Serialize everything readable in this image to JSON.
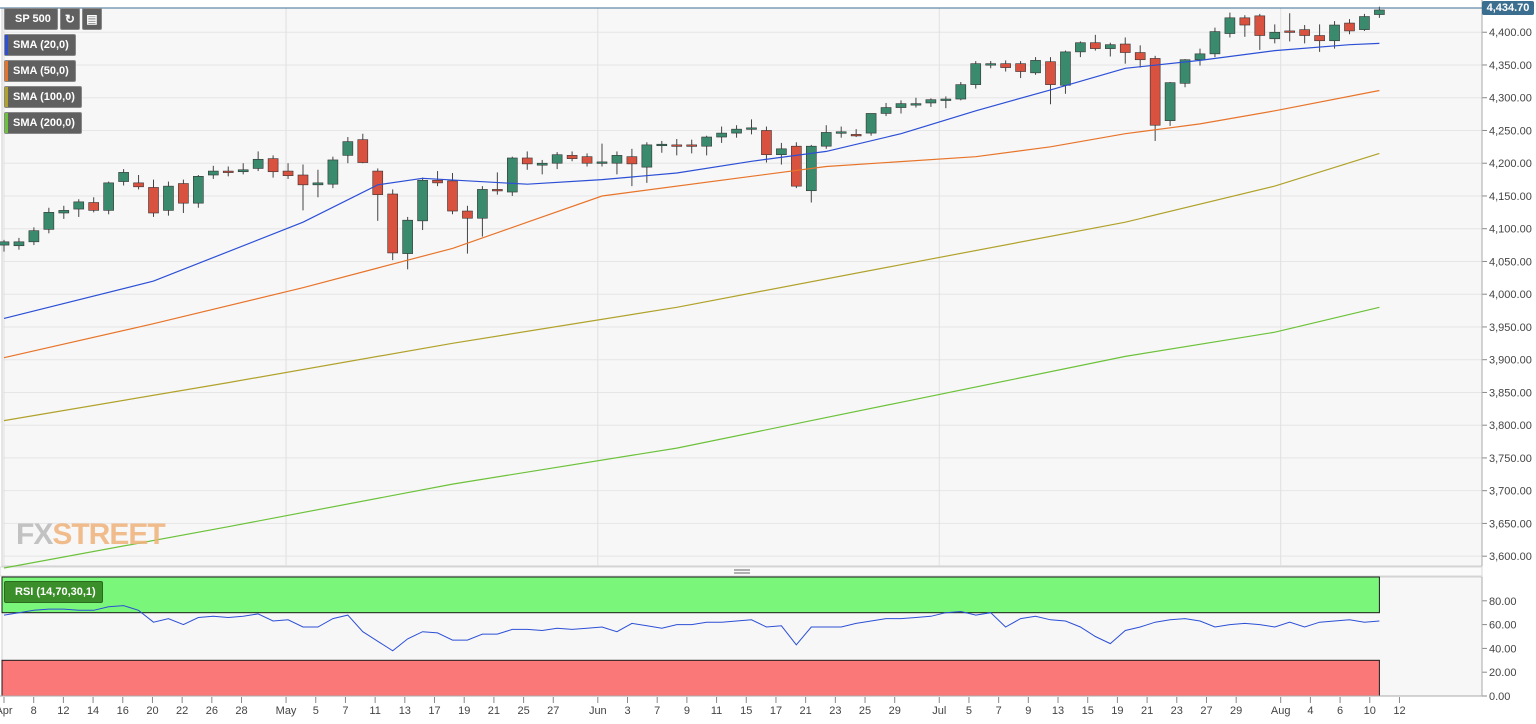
{
  "symbol": "SP 500",
  "price_label": "4,434.70",
  "logo": {
    "part1": "FX",
    "part2": "STREET"
  },
  "indicators": [
    {
      "label": "SMA (20,0)",
      "color": "#2c4fd6"
    },
    {
      "label": "SMA (50,0)",
      "color": "#e8742a"
    },
    {
      "label": "SMA (100,0)",
      "color": "#b0a22a"
    },
    {
      "label": "SMA (200,0)",
      "color": "#6cc23a"
    }
  ],
  "rsi_label": "RSI (14,70,30,1)",
  "icons": [
    "refresh-icon",
    "bar-chart-icon"
  ],
  "chart_data": {
    "type": "candlestick",
    "y_ticks": [
      "3,600.00",
      "3,650.00",
      "3,700.00",
      "3,750.00",
      "3,800.00",
      "3,850.00",
      "3,900.00",
      "3,950.00",
      "4,000.00",
      "4,050.00",
      "4,100.00",
      "4,150.00",
      "4,200.00",
      "4,250.00",
      "4,300.00",
      "4,350.00",
      "4,400.00"
    ],
    "ylim": [
      3585,
      4437
    ],
    "x_ticks": [
      "Apr",
      "8",
      "12",
      "14",
      "16",
      "20",
      "22",
      "26",
      "28",
      "May",
      "5",
      "7",
      "11",
      "13",
      "17",
      "19",
      "21",
      "25",
      "27",
      "Jun",
      "3",
      "7",
      "9",
      "11",
      "15",
      "17",
      "21",
      "23",
      "25",
      "29",
      "Jul",
      "5",
      "7",
      "9",
      "13",
      "15",
      "19",
      "21",
      "23",
      "27",
      "29",
      "Aug",
      "4",
      "6",
      "10",
      "12"
    ],
    "candles": [
      {
        "o": 4075,
        "h": 4083,
        "l": 4065,
        "c": 4080
      },
      {
        "o": 4074,
        "h": 4086,
        "l": 4068,
        "c": 4080
      },
      {
        "o": 4080,
        "h": 4102,
        "l": 4075,
        "c": 4097
      },
      {
        "o": 4099,
        "h": 4132,
        "l": 4093,
        "c": 4125
      },
      {
        "o": 4124,
        "h": 4135,
        "l": 4115,
        "c": 4128
      },
      {
        "o": 4130,
        "h": 4145,
        "l": 4118,
        "c": 4141
      },
      {
        "o": 4140,
        "h": 4148,
        "l": 4125,
        "c": 4128
      },
      {
        "o": 4128,
        "h": 4172,
        "l": 4122,
        "c": 4170
      },
      {
        "o": 4172,
        "h": 4191,
        "l": 4166,
        "c": 4186
      },
      {
        "o": 4170,
        "h": 4182,
        "l": 4160,
        "c": 4164
      },
      {
        "o": 4163,
        "h": 4175,
        "l": 4118,
        "c": 4124
      },
      {
        "o": 4128,
        "h": 4172,
        "l": 4120,
        "c": 4165
      },
      {
        "o": 4169,
        "h": 4175,
        "l": 4124,
        "c": 4139
      },
      {
        "o": 4139,
        "h": 4182,
        "l": 4132,
        "c": 4180
      },
      {
        "o": 4182,
        "h": 4196,
        "l": 4176,
        "c": 4188
      },
      {
        "o": 4188,
        "h": 4195,
        "l": 4180,
        "c": 4187
      },
      {
        "o": 4187,
        "h": 4200,
        "l": 4183,
        "c": 4190
      },
      {
        "o": 4192,
        "h": 4218,
        "l": 4188,
        "c": 4206
      },
      {
        "o": 4207,
        "h": 4212,
        "l": 4178,
        "c": 4187
      },
      {
        "o": 4188,
        "h": 4200,
        "l": 4176,
        "c": 4181
      },
      {
        "o": 4182,
        "h": 4198,
        "l": 4128,
        "c": 4167
      },
      {
        "o": 4167,
        "h": 4190,
        "l": 4148,
        "c": 4170
      },
      {
        "o": 4168,
        "h": 4210,
        "l": 4162,
        "c": 4205
      },
      {
        "o": 4212,
        "h": 4240,
        "l": 4200,
        "c": 4233
      },
      {
        "o": 4236,
        "h": 4245,
        "l": 4200,
        "c": 4201
      },
      {
        "o": 4188,
        "h": 4192,
        "l": 4112,
        "c": 4152
      },
      {
        "o": 4153,
        "h": 4160,
        "l": 4052,
        "c": 4063
      },
      {
        "o": 4062,
        "h": 4118,
        "l": 4038,
        "c": 4113
      },
      {
        "o": 4112,
        "h": 4178,
        "l": 4098,
        "c": 4174
      },
      {
        "o": 4174,
        "h": 4188,
        "l": 4165,
        "c": 4170
      },
      {
        "o": 4173,
        "h": 4185,
        "l": 4122,
        "c": 4127
      },
      {
        "o": 4127,
        "h": 4135,
        "l": 4062,
        "c": 4116
      },
      {
        "o": 4116,
        "h": 4165,
        "l": 4088,
        "c": 4160
      },
      {
        "o": 4160,
        "h": 4186,
        "l": 4152,
        "c": 4159
      },
      {
        "o": 4156,
        "h": 4210,
        "l": 4150,
        "c": 4208
      },
      {
        "o": 4208,
        "h": 4218,
        "l": 4190,
        "c": 4199
      },
      {
        "o": 4197,
        "h": 4205,
        "l": 4183,
        "c": 4200
      },
      {
        "o": 4200,
        "h": 4217,
        "l": 4191,
        "c": 4213
      },
      {
        "o": 4212,
        "h": 4218,
        "l": 4203,
        "c": 4207
      },
      {
        "o": 4210,
        "h": 4215,
        "l": 4195,
        "c": 4200
      },
      {
        "o": 4200,
        "h": 4230,
        "l": 4195,
        "c": 4202
      },
      {
        "o": 4200,
        "h": 4218,
        "l": 4183,
        "c": 4212
      },
      {
        "o": 4210,
        "h": 4222,
        "l": 4165,
        "c": 4199
      },
      {
        "o": 4194,
        "h": 4232,
        "l": 4170,
        "c": 4228
      },
      {
        "o": 4228,
        "h": 4234,
        "l": 4216,
        "c": 4229
      },
      {
        "o": 4228,
        "h": 4237,
        "l": 4212,
        "c": 4226
      },
      {
        "o": 4228,
        "h": 4236,
        "l": 4215,
        "c": 4226
      },
      {
        "o": 4226,
        "h": 4242,
        "l": 4212,
        "c": 4240
      },
      {
        "o": 4240,
        "h": 4256,
        "l": 4231,
        "c": 4246
      },
      {
        "o": 4246,
        "h": 4258,
        "l": 4239,
        "c": 4252
      },
      {
        "o": 4252,
        "h": 4267,
        "l": 4244,
        "c": 4254
      },
      {
        "o": 4250,
        "h": 4256,
        "l": 4201,
        "c": 4213
      },
      {
        "o": 4213,
        "h": 4231,
        "l": 4198,
        "c": 4222
      },
      {
        "o": 4226,
        "h": 4232,
        "l": 4162,
        "c": 4165
      },
      {
        "o": 4158,
        "h": 4228,
        "l": 4140,
        "c": 4226
      },
      {
        "o": 4226,
        "h": 4258,
        "l": 4222,
        "c": 4247
      },
      {
        "o": 4246,
        "h": 4256,
        "l": 4239,
        "c": 4248
      },
      {
        "o": 4244,
        "h": 4252,
        "l": 4240,
        "c": 4243
      },
      {
        "o": 4246,
        "h": 4276,
        "l": 4242,
        "c": 4276
      },
      {
        "o": 4276,
        "h": 4292,
        "l": 4272,
        "c": 4285
      },
      {
        "o": 4285,
        "h": 4296,
        "l": 4276,
        "c": 4291
      },
      {
        "o": 4289,
        "h": 4300,
        "l": 4285,
        "c": 4291
      },
      {
        "o": 4292,
        "h": 4299,
        "l": 4286,
        "c": 4297
      },
      {
        "o": 4298,
        "h": 4302,
        "l": 4284,
        "c": 4298
      },
      {
        "o": 4298,
        "h": 4324,
        "l": 4296,
        "c": 4320
      },
      {
        "o": 4320,
        "h": 4356,
        "l": 4314,
        "c": 4352
      },
      {
        "o": 4352,
        "h": 4356,
        "l": 4345,
        "c": 4352
      },
      {
        "o": 4352,
        "h": 4357,
        "l": 4340,
        "c": 4346
      },
      {
        "o": 4352,
        "h": 4356,
        "l": 4330,
        "c": 4340
      },
      {
        "o": 4338,
        "h": 4362,
        "l": 4335,
        "c": 4357
      },
      {
        "o": 4355,
        "h": 4362,
        "l": 4290,
        "c": 4320
      },
      {
        "o": 4319,
        "h": 4372,
        "l": 4306,
        "c": 4370
      },
      {
        "o": 4370,
        "h": 4386,
        "l": 4362,
        "c": 4384
      },
      {
        "o": 4384,
        "h": 4396,
        "l": 4372,
        "c": 4375
      },
      {
        "o": 4375,
        "h": 4384,
        "l": 4363,
        "c": 4381
      },
      {
        "o": 4382,
        "h": 4392,
        "l": 4352,
        "c": 4369
      },
      {
        "o": 4369,
        "h": 4380,
        "l": 4346,
        "c": 4358
      },
      {
        "o": 4360,
        "h": 4364,
        "l": 4234,
        "c": 4258
      },
      {
        "o": 4265,
        "h": 4324,
        "l": 4257,
        "c": 4323
      },
      {
        "o": 4322,
        "h": 4359,
        "l": 4316,
        "c": 4358
      },
      {
        "o": 4358,
        "h": 4375,
        "l": 4349,
        "c": 4367
      },
      {
        "o": 4367,
        "h": 4407,
        "l": 4362,
        "c": 4401
      },
      {
        "o": 4398,
        "h": 4430,
        "l": 4392,
        "c": 4422
      },
      {
        "o": 4422,
        "h": 4426,
        "l": 4393,
        "c": 4411
      },
      {
        "o": 4425,
        "h": 4428,
        "l": 4373,
        "c": 4395
      },
      {
        "o": 4390,
        "h": 4412,
        "l": 4383,
        "c": 4400
      },
      {
        "o": 4402,
        "h": 4429,
        "l": 4386,
        "c": 4401
      },
      {
        "o": 4404,
        "h": 4411,
        "l": 4383,
        "c": 4395
      },
      {
        "o": 4395,
        "h": 4412,
        "l": 4370,
        "c": 4387
      },
      {
        "o": 4387,
        "h": 4417,
        "l": 4375,
        "c": 4411
      },
      {
        "o": 4414,
        "h": 4420,
        "l": 4397,
        "c": 4402
      },
      {
        "o": 4404,
        "h": 4428,
        "l": 4402,
        "c": 4424
      },
      {
        "o": 4427,
        "h": 4439,
        "l": 4422,
        "c": 4434
      }
    ],
    "sma20": [
      [
        0,
        3963
      ],
      [
        10,
        4020
      ],
      [
        20,
        4110
      ],
      [
        25,
        4167
      ],
      [
        28,
        4177
      ],
      [
        35,
        4168
      ],
      [
        40,
        4175
      ],
      [
        45,
        4185
      ],
      [
        50,
        4203
      ],
      [
        55,
        4218
      ],
      [
        60,
        4245
      ],
      [
        65,
        4280
      ],
      [
        70,
        4312
      ],
      [
        75,
        4345
      ],
      [
        80,
        4357
      ],
      [
        85,
        4372
      ],
      [
        90,
        4381
      ],
      [
        92,
        4383
      ]
    ],
    "sma50": [
      [
        0,
        3903
      ],
      [
        10,
        3955
      ],
      [
        20,
        4010
      ],
      [
        25,
        4040
      ],
      [
        30,
        4070
      ],
      [
        35,
        4110
      ],
      [
        40,
        4150
      ],
      [
        50,
        4180
      ],
      [
        55,
        4195
      ],
      [
        65,
        4210
      ],
      [
        70,
        4225
      ],
      [
        75,
        4245
      ],
      [
        80,
        4260
      ],
      [
        85,
        4280
      ],
      [
        92,
        4311
      ]
    ],
    "sma100": [
      [
        0,
        3807
      ],
      [
        15,
        3865
      ],
      [
        30,
        3925
      ],
      [
        45,
        3980
      ],
      [
        60,
        4045
      ],
      [
        75,
        4110
      ],
      [
        85,
        4165
      ],
      [
        92,
        4215
      ]
    ],
    "sma200": [
      [
        0,
        3582
      ],
      [
        15,
        3645
      ],
      [
        30,
        3710
      ],
      [
        45,
        3765
      ],
      [
        60,
        3835
      ],
      [
        75,
        3905
      ],
      [
        85,
        3942
      ],
      [
        92,
        3980
      ]
    ],
    "rsi": {
      "ylim": [
        0,
        100
      ],
      "y_ticks": [
        "0.00",
        "20.00",
        "40.00",
        "60.00",
        "80.00"
      ],
      "overbought": 70,
      "oversold": 30,
      "values": [
        68,
        70,
        72,
        73,
        73,
        72,
        72,
        75,
        76,
        72,
        62,
        65,
        60,
        66,
        67,
        66,
        67,
        69,
        63,
        64,
        58,
        58,
        65,
        68,
        54,
        46,
        38,
        48,
        54,
        53,
        47,
        47,
        52,
        52,
        56,
        56,
        55,
        57,
        56,
        57,
        58,
        54,
        61,
        59,
        57,
        60,
        60,
        62,
        62,
        63,
        64,
        58,
        59,
        43,
        58,
        58,
        58,
        61,
        63,
        65,
        65,
        66,
        67,
        70,
        71,
        68,
        70,
        58,
        65,
        67,
        64,
        63,
        58,
        50,
        44,
        55,
        58,
        62,
        64,
        65,
        63,
        58,
        60,
        61,
        60,
        58,
        62,
        58,
        62,
        63,
        64,
        62,
        63
      ]
    }
  }
}
